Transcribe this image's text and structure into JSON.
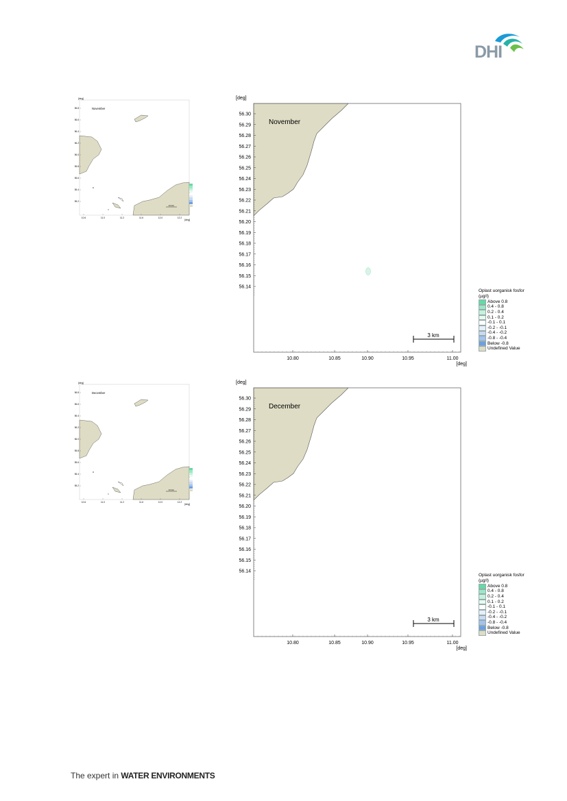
{
  "header": {
    "logo_text": "DHI"
  },
  "footer": {
    "prefix": "The expert in ",
    "emphasis": "WATER ENVIRONMENTS"
  },
  "maps": [
    {
      "month": "November",
      "y_unit": "[deg]",
      "x_unit": "[deg]",
      "y_ticks": [
        "56.30",
        "56.29",
        "56.28",
        "56.27",
        "56.26",
        "56.25",
        "56.24",
        "56.23",
        "56.22",
        "56.21",
        "56.20",
        "56.19",
        "56.18",
        "56.17",
        "56.16",
        "56.15",
        "56.14"
      ],
      "x_ticks": [
        "10.80",
        "10.85",
        "10.90",
        "10.95",
        "11.00"
      ],
      "scale_bar": "3 km",
      "has_small_patch": true,
      "legend": {
        "title": "Oplast uorganisk fosfor",
        "unit": "(µg/l)",
        "items": [
          {
            "label": "Above  0.8",
            "color": "#66d9a6"
          },
          {
            "label": "0.4 -  0.8",
            "color": "#9be8c6"
          },
          {
            "label": "0.2 -  0.4",
            "color": "#c4f2dd"
          },
          {
            "label": "0.1 -  0.2",
            "color": "#e6faf0"
          },
          {
            "label": "-0.1 -  0.1",
            "color": "#ffffff"
          },
          {
            "label": "-0.2 - -0.1",
            "color": "#e6eefb"
          },
          {
            "label": "-0.4 - -0.2",
            "color": "#c9daf4"
          },
          {
            "label": "-0.8 - -0.4",
            "color": "#a3c2ee"
          },
          {
            "label": "Below -0.8",
            "color": "#6aa0e6"
          },
          {
            "label": "Undefined Value",
            "color": "#dedcc4"
          }
        ]
      },
      "overview": {
        "month": "November",
        "y_unit": "[deg]",
        "x_unit": "[deg]",
        "y_ticks": [
          "56.8",
          "56.6",
          "56.4",
          "56.2",
          "56.0",
          "55.8",
          "55.6",
          "55.4",
          "55.2"
        ],
        "x_ticks": [
          "10.6",
          "11.0",
          "11.2",
          "11.6",
          "12.0",
          "12.2"
        ],
        "scale_bar": "10 km"
      }
    },
    {
      "month": "December",
      "y_unit": "[deg]",
      "x_unit": "[deg]",
      "y_ticks": [
        "56.30",
        "56.29",
        "56.28",
        "56.27",
        "56.26",
        "56.25",
        "56.24",
        "56.23",
        "56.22",
        "56.21",
        "56.20",
        "56.19",
        "56.18",
        "56.17",
        "56.16",
        "56.15",
        "56.14"
      ],
      "x_ticks": [
        "10.80",
        "10.85",
        "10.90",
        "10.95",
        "11.00"
      ],
      "scale_bar": "3 km",
      "has_small_patch": false,
      "legend": {
        "title": "Oplast uorganisk fosfor",
        "unit": "(µg/l)",
        "items": [
          {
            "label": "Above  0.8",
            "color": "#66d9a6"
          },
          {
            "label": "0.4 -  0.8",
            "color": "#9be8c6"
          },
          {
            "label": "0.2 -  0.4",
            "color": "#c4f2dd"
          },
          {
            "label": "0.1 -  0.2",
            "color": "#e6faf0"
          },
          {
            "label": "-0.1 -  0.1",
            "color": "#ffffff"
          },
          {
            "label": "-0.2 - -0.1",
            "color": "#e6eefb"
          },
          {
            "label": "-0.4 - -0.2",
            "color": "#c9daf4"
          },
          {
            "label": "-0.8 - -0.4",
            "color": "#a3c2ee"
          },
          {
            "label": "Below -0.8",
            "color": "#6aa0e6"
          },
          {
            "label": "Undefined Value",
            "color": "#dedcc4"
          }
        ]
      },
      "overview": {
        "month": "December",
        "y_unit": "[deg]",
        "x_unit": "[deg]",
        "y_ticks": [
          "56.8",
          "56.6",
          "56.4",
          "56.2",
          "56.0",
          "55.8",
          "55.6",
          "55.4",
          "55.2"
        ],
        "x_ticks": [
          "10.6",
          "11.0",
          "11.2",
          "11.6",
          "12.0",
          "12.2"
        ],
        "scale_bar": "10 km"
      }
    }
  ],
  "colors": {
    "land": "#dedcc4",
    "water": "#ffffff",
    "frame": "#666666"
  }
}
